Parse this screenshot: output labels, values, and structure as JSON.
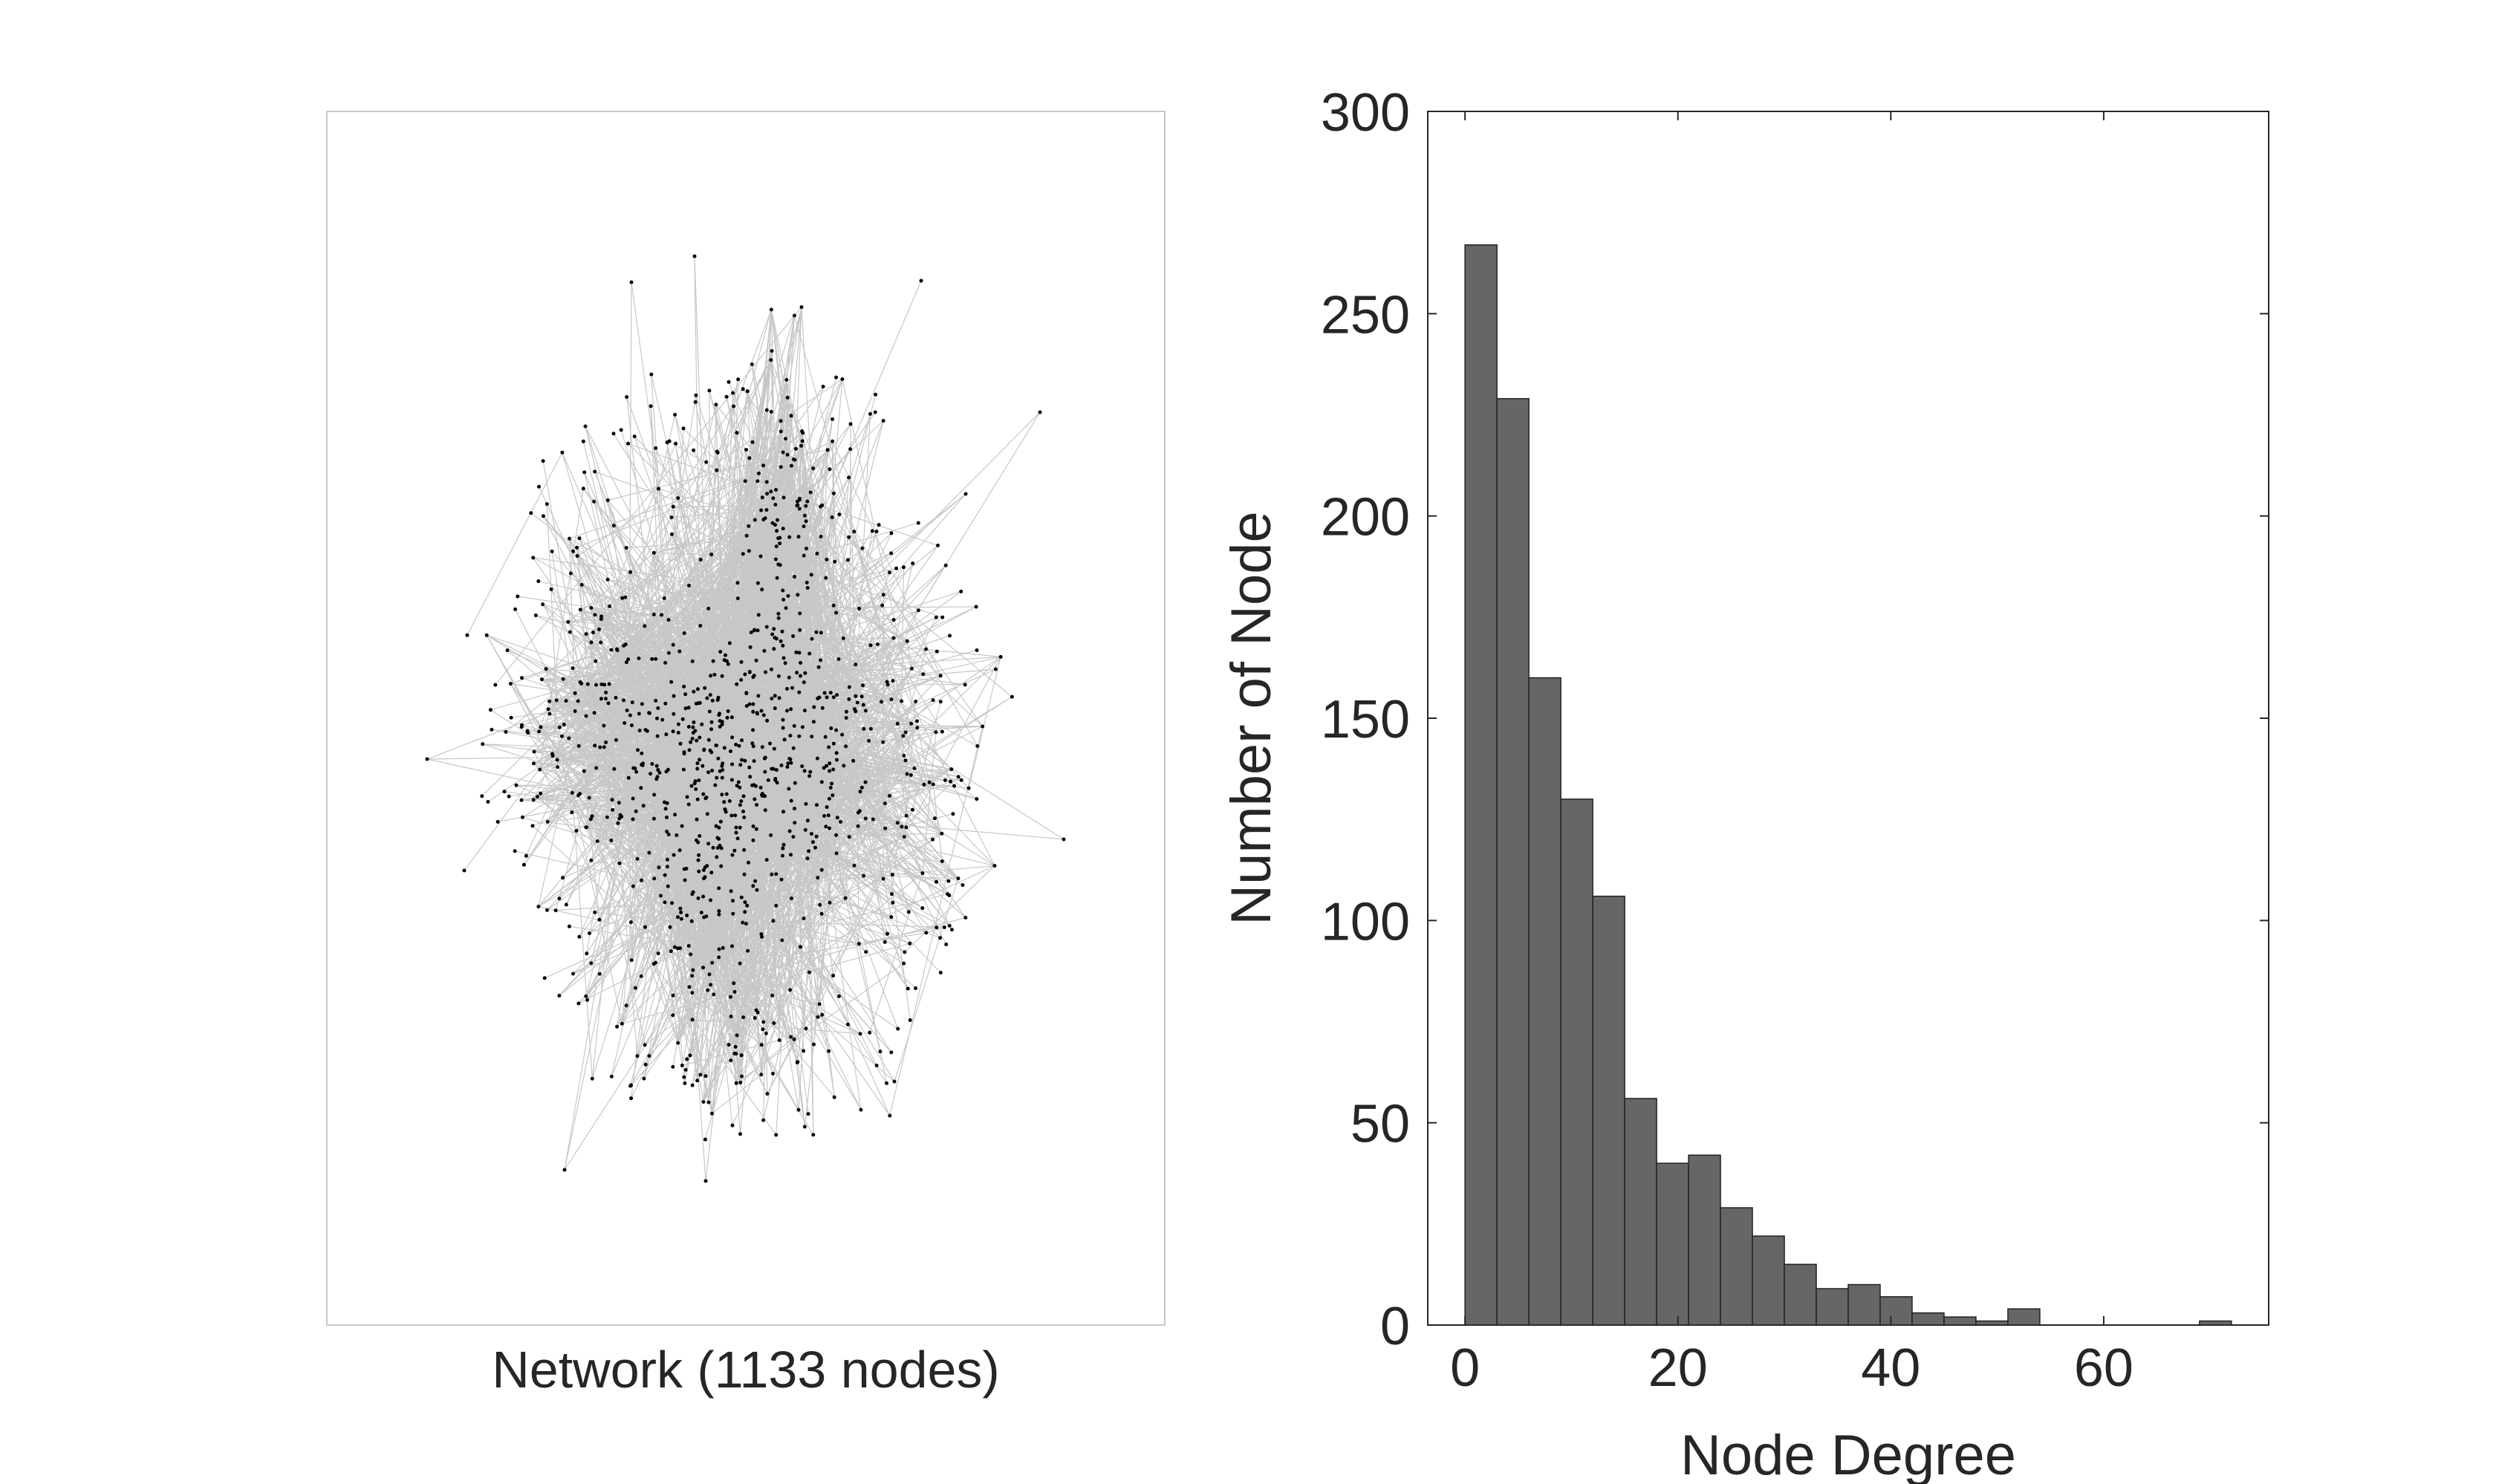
{
  "chart_data": [
    {
      "type": "network",
      "xlabel": "Network (1133 nodes)",
      "node_count": 1133,
      "colors": {
        "edge": "#000000",
        "node": "#000000",
        "frame": "#c8c8c8"
      }
    },
    {
      "type": "bar",
      "xlabel": "Node Degree",
      "ylabel": "Number of Node",
      "xlim": [
        -3.5,
        75.5
      ],
      "ylim": [
        0,
        300
      ],
      "xticks": [
        "0",
        "20",
        "40",
        "60"
      ],
      "yticks": [
        "0",
        "50",
        "100",
        "150",
        "200",
        "250",
        "300"
      ],
      "bin_width": 3,
      "bin_edges_start": 0,
      "values": [
        267,
        229,
        160,
        130,
        106,
        56,
        40,
        42,
        29,
        22,
        15,
        9,
        10,
        7,
        3,
        2,
        1,
        4,
        0,
        0,
        0,
        0,
        0,
        1
      ],
      "colors": {
        "bar": "#666666",
        "bar_edge": "#222222",
        "axis": "#262626"
      }
    }
  ]
}
